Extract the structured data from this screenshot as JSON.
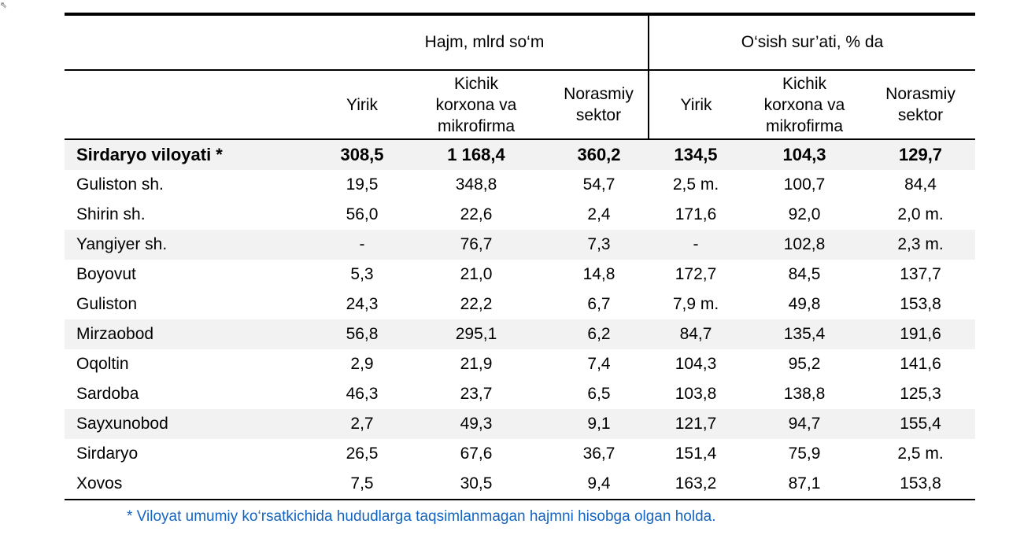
{
  "header": {
    "group_volume": "Hajm, mlrd so‘m",
    "group_growth": "O‘sish sur’ati, % da",
    "col_large": "Yirik",
    "col_small_l1": "Kichik",
    "col_small_l2": "korxona va",
    "col_small_l3": "mikrofirma",
    "col_informal_l1": "Norasmiy",
    "col_informal_l2": "sektor"
  },
  "rows": [
    [
      "Sirdaryo viloyati *",
      "308,5",
      "1 168,4",
      "360,2",
      "134,5",
      "104,3",
      "129,7"
    ],
    [
      "Guliston sh.",
      "19,5",
      "348,8",
      "54,7",
      "2,5 m.",
      "100,7",
      "84,4"
    ],
    [
      "Shirin sh.",
      "56,0",
      "22,6",
      "2,4",
      "171,6",
      "92,0",
      "2,0 m."
    ],
    [
      "Yangiyer sh.",
      "-",
      "76,7",
      "7,3",
      "-",
      "102,8",
      "2,3 m."
    ],
    [
      "Boyovut",
      "5,3",
      "21,0",
      "14,8",
      "172,7",
      "84,5",
      "137,7"
    ],
    [
      "Guliston",
      "24,3",
      "22,2",
      "6,7",
      "7,9 m.",
      "49,8",
      "153,8"
    ],
    [
      "Mirzaobod",
      "56,8",
      "295,1",
      "6,2",
      "84,7",
      "135,4",
      "191,6"
    ],
    [
      "Oqoltin",
      "2,9",
      "21,9",
      "7,4",
      "104,3",
      "95,2",
      "141,6"
    ],
    [
      "Sardoba",
      "46,3",
      "23,7",
      "6,5",
      "103,8",
      "138,8",
      "125,3"
    ],
    [
      "Sayxunobod",
      "2,7",
      "49,3",
      "9,1",
      "121,7",
      "94,7",
      "155,4"
    ],
    [
      "Sirdaryo",
      "26,5",
      "67,6",
      "36,7",
      "151,4",
      "75,9",
      "2,5 m."
    ],
    [
      "Xovos",
      "7,5",
      "30,5",
      "9,4",
      "163,2",
      "87,1",
      "153,8"
    ]
  ],
  "footnote": "* Viloyat umumiy ko‘rsatkichida hududlarga taqsimlanmagan hajmni hisobga olgan holda."
}
